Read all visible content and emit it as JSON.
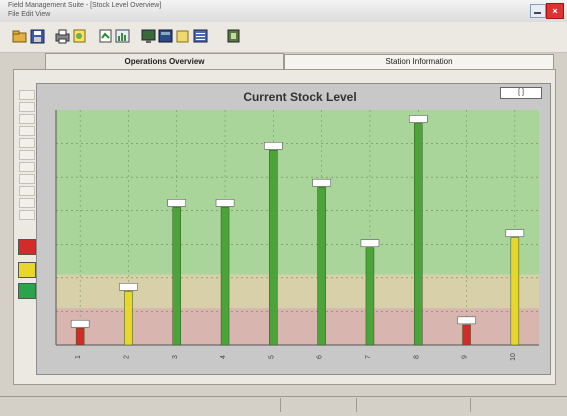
{
  "window": {
    "title_line1": "Field Management Suite - [Stock Level Overview]",
    "title_line2": "File  Edit  View",
    "close_label": "×"
  },
  "toolbar": {
    "icons": [
      "open-icon",
      "save-icon",
      "print-icon",
      "preview-icon",
      "refresh-icon",
      "chart-icon",
      "monitor-icon",
      "database-icon",
      "folder-icon",
      "list-icon",
      "exit-icon"
    ]
  },
  "tabs": [
    {
      "label": "Operations Overview",
      "active": true
    },
    {
      "label": "Station Information",
      "active": false
    }
  ],
  "legend": {
    "colors": {
      "critical": "#d42a2a",
      "warning": "#e8d62a",
      "ok": "#2aa44a"
    }
  },
  "chart_header": {
    "badge": "[ ]"
  },
  "chart_data": {
    "type": "bar",
    "title": "Current Stock Level",
    "categories": [
      "1",
      "2",
      "3",
      "4",
      "5",
      "6",
      "7",
      "8",
      "9",
      "10"
    ],
    "values": [
      5,
      16,
      41,
      41,
      58,
      47,
      29,
      66,
      6,
      32
    ],
    "value_labels": [
      "",
      "",
      "",
      "",
      "",
      "",
      "",
      "",
      "",
      ""
    ],
    "ylim": [
      0,
      70
    ],
    "bands": [
      {
        "from": 0,
        "to": 11,
        "color": "#d9b5b0"
      },
      {
        "from": 11,
        "to": 21,
        "color": "#d8d0a8"
      },
      {
        "from": 21,
        "to": 70,
        "color": "#a9d49a"
      }
    ],
    "bar_colors": [
      "#d42a2a",
      "#e8d62a",
      "#4ca33a",
      "#4ca33a",
      "#4ca33a",
      "#4ca33a",
      "#4ca33a",
      "#4ca33a",
      "#d42a2a",
      "#e8d62a"
    ],
    "grid": true,
    "xlabel": "",
    "ylabel": ""
  },
  "chart_footer": {
    "left": "",
    "right": ""
  },
  "statusbar": {
    "left": "",
    "mid": "",
    "right1": "",
    "right2": ""
  }
}
